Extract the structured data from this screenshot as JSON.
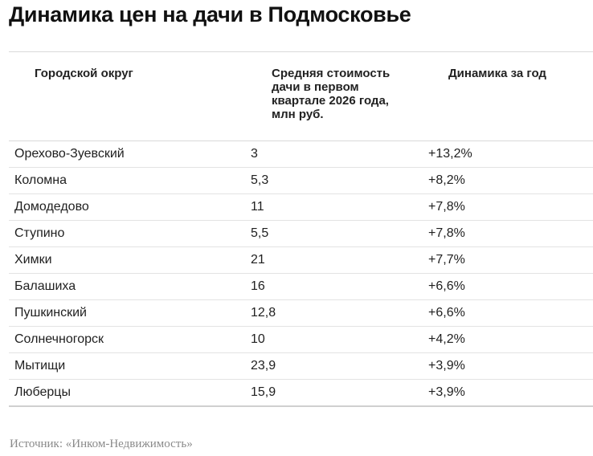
{
  "title": "Динамика цен на дачи в Подмосковье",
  "table": {
    "headers": [
      "Городской округ",
      "Средняя стоимость дачи в первом квартале 2026 года, млн руб.",
      "Динамика за год"
    ],
    "rows": [
      {
        "district": "Орехово-Зуевский",
        "price": "3",
        "change": "+13,2%"
      },
      {
        "district": "Коломна",
        "price": "5,3",
        "change": "+8,2%"
      },
      {
        "district": "Домодедово",
        "price": "11",
        "change": "+7,8%"
      },
      {
        "district": "Ступино",
        "price": "5,5",
        "change": "+7,8%"
      },
      {
        "district": "Химки",
        "price": "21",
        "change": "+7,7%"
      },
      {
        "district": "Балашиха",
        "price": "16",
        "change": "+6,6%"
      },
      {
        "district": "Пушкинский",
        "price": "12,8",
        "change": "+6,6%"
      },
      {
        "district": "Солнечногорск",
        "price": "10",
        "change": "+4,2%"
      },
      {
        "district": "Мытищи",
        "price": "23,9",
        "change": "+3,9%"
      },
      {
        "district": "Люберцы",
        "price": "15,9",
        "change": "+3,9%"
      }
    ]
  },
  "source": "Источник: «Инком-Недвижимость»"
}
